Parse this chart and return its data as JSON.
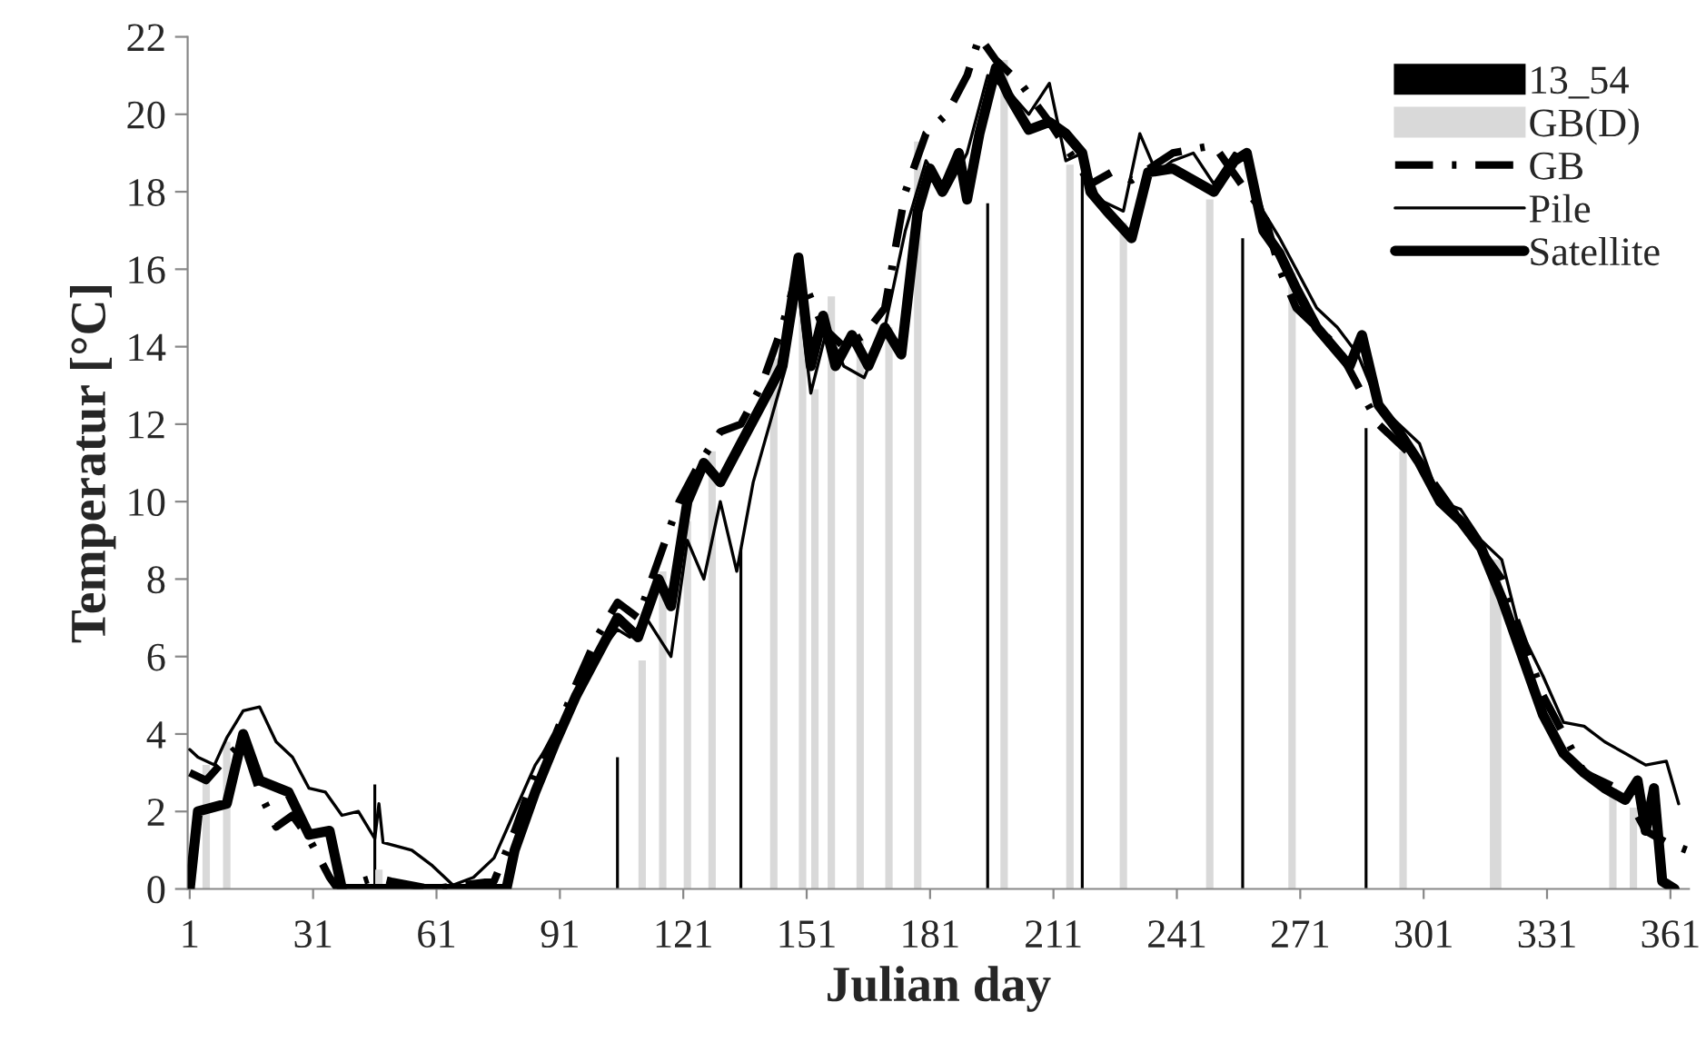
{
  "chart_data": {
    "type": "line",
    "xlabel": "Julian day",
    "ylabel": "Temperatur [°C]",
    "xlim": [
      0.5,
      365.5
    ],
    "xticks": [
      1,
      31,
      61,
      91,
      121,
      151,
      181,
      211,
      241,
      271,
      301,
      331,
      361
    ],
    "ylim": [
      0,
      22
    ],
    "yticks": [
      0,
      2,
      4,
      6,
      8,
      10,
      12,
      14,
      16,
      18,
      20,
      22
    ],
    "grid": false,
    "legend": "top right",
    "series": [
      {
        "name": "13_54",
        "type": "bar",
        "color": "#000000",
        "x": [
          46,
          105,
          135,
          195,
          218,
          257,
          287
        ],
        "values": [
          2.7,
          3.4,
          8.8,
          17.7,
          18.5,
          16.8,
          11.9
        ]
      },
      {
        "name": "GB(D)",
        "type": "bar",
        "color": "#d9d9d9",
        "x": [
          5,
          10,
          47,
          111,
          116,
          122,
          128,
          143,
          150,
          153,
          157,
          164,
          171,
          178,
          199,
          215,
          228,
          249,
          269,
          296,
          318,
          319,
          347,
          352
        ],
        "values": [
          3.2,
          3.8,
          0.5,
          5.9,
          8.2,
          9.5,
          11.3,
          13.7,
          15.1,
          12.9,
          15.3,
          14.2,
          14.5,
          19.3,
          21.4,
          18.7,
          17.2,
          17.8,
          15.9,
          11.3,
          8.5,
          8.5,
          2.6,
          2.1
        ]
      },
      {
        "name": "GB",
        "color": "#000000",
        "line_style": "dashdot",
        "x": [
          1,
          5,
          10,
          14,
          18,
          22,
          26,
          30,
          35,
          37,
          46,
          50,
          55,
          60,
          75,
          80,
          85,
          90,
          95,
          100,
          105,
          110,
          115,
          120,
          125,
          130,
          135,
          140,
          145,
          149,
          155,
          160,
          165,
          170,
          175,
          180,
          185,
          190,
          193,
          197,
          203,
          210,
          215,
          220,
          225,
          230,
          240,
          250,
          258,
          262,
          266,
          270,
          280,
          290,
          300,
          310,
          320,
          330,
          340,
          350,
          355,
          360,
          365
        ],
        "values": [
          3.0,
          2.8,
          3.4,
          3.8,
          2.5,
          1.6,
          1.9,
          1.3,
          0.3,
          0,
          0.3,
          0.2,
          0.1,
          0,
          0.2,
          1.5,
          3.0,
          4.0,
          5.3,
          6.5,
          7.4,
          7.0,
          8.5,
          10.0,
          11.0,
          11.8,
          12.0,
          13.0,
          14.5,
          16.0,
          14.5,
          14.0,
          14.3,
          15.0,
          18.0,
          19.5,
          20.0,
          21.0,
          22.0,
          21.4,
          20.8,
          19.8,
          19.0,
          18.2,
          18.5,
          18.3,
          19.0,
          19.2,
          18.0,
          17.5,
          16.0,
          15.0,
          14.0,
          12.0,
          11.0,
          9.5,
          8.0,
          5.0,
          3.0,
          2.5,
          1.5,
          1.2,
          1.0
        ]
      },
      {
        "name": "Pile",
        "color": "#000000",
        "line_style": "solid",
        "x": [
          1,
          3,
          7,
          10,
          14,
          18,
          22,
          26,
          30,
          34,
          38,
          42,
          46,
          47,
          48,
          55,
          60,
          65,
          70,
          75,
          80,
          85,
          90,
          95,
          100,
          105,
          108,
          112,
          118,
          122,
          126,
          130,
          134,
          138,
          142,
          146,
          149,
          152,
          156,
          160,
          165,
          170,
          175,
          180,
          185,
          190,
          195,
          200,
          205,
          210,
          214,
          218,
          222,
          228,
          232,
          236,
          240,
          245,
          250,
          255,
          258,
          262,
          266,
          270,
          275,
          280,
          285,
          290,
          295,
          300,
          305,
          310,
          315,
          320,
          324,
          330,
          335,
          340,
          345,
          350,
          355,
          360,
          363
        ],
        "values": [
          3.6,
          3.4,
          3.2,
          3.9,
          4.6,
          4.7,
          3.8,
          3.4,
          2.6,
          2.5,
          1.9,
          2.0,
          1.3,
          2.2,
          1.2,
          1.0,
          0.6,
          0.1,
          0.3,
          0.8,
          2.0,
          3.2,
          4.0,
          5.0,
          6.0,
          6.7,
          6.5,
          7.0,
          6.0,
          9.0,
          8.0,
          10.0,
          8.2,
          10.5,
          12.0,
          13.5,
          15.5,
          12.8,
          14.5,
          13.5,
          13.2,
          14.5,
          17.0,
          18.8,
          18.0,
          19.0,
          21.0,
          20.6,
          20.0,
          20.8,
          18.8,
          19.0,
          17.8,
          17.5,
          19.5,
          18.5,
          18.8,
          19.0,
          18.2,
          19.0,
          18.8,
          17.5,
          16.8,
          16.0,
          15.0,
          14.5,
          13.8,
          12.5,
          12.0,
          11.5,
          10.0,
          9.8,
          9.0,
          8.5,
          6.8,
          5.5,
          4.3,
          4.2,
          3.8,
          3.5,
          3.2,
          3.3,
          2.2
        ]
      },
      {
        "name": "Satellite",
        "color": "#000000",
        "line_style": "solid",
        "x": [
          1,
          3,
          10,
          14,
          18,
          25,
          30,
          35,
          38,
          78,
          80,
          85,
          90,
          95,
          100,
          105,
          110,
          115,
          118,
          122,
          126,
          130,
          135,
          140,
          145,
          149,
          152,
          155,
          158,
          162,
          166,
          170,
          174,
          178,
          181,
          184,
          188,
          190,
          193,
          197,
          200,
          205,
          210,
          214,
          218,
          220,
          224,
          230,
          234,
          240,
          245,
          250,
          255,
          258,
          262,
          266,
          270,
          275,
          279,
          283,
          286,
          290,
          295,
          300,
          305,
          310,
          315,
          320,
          325,
          330,
          335,
          340,
          345,
          350,
          353,
          355,
          357,
          359,
          362
        ],
        "values": [
          0,
          2.0,
          2.2,
          4.0,
          2.8,
          2.5,
          1.4,
          1.5,
          0,
          0,
          1.0,
          2.5,
          3.8,
          5.0,
          6.0,
          7.0,
          6.5,
          8.0,
          7.3,
          10.0,
          11.0,
          10.5,
          11.5,
          12.5,
          13.5,
          16.3,
          13.5,
          14.8,
          13.5,
          14.3,
          13.5,
          14.5,
          13.8,
          17.5,
          18.6,
          18.0,
          19.0,
          17.8,
          19.5,
          21.2,
          20.5,
          19.6,
          19.8,
          19.5,
          19.0,
          18.0,
          17.5,
          16.8,
          18.5,
          18.6,
          18.3,
          18.0,
          18.8,
          19.0,
          17.0,
          16.4,
          15.5,
          14.5,
          14.0,
          13.5,
          14.3,
          12.5,
          11.8,
          11.0,
          10.0,
          9.5,
          8.8,
          7.5,
          6.0,
          4.5,
          3.5,
          3.0,
          2.6,
          2.3,
          2.8,
          1.5,
          2.6,
          0.2,
          0
        ]
      }
    ]
  }
}
